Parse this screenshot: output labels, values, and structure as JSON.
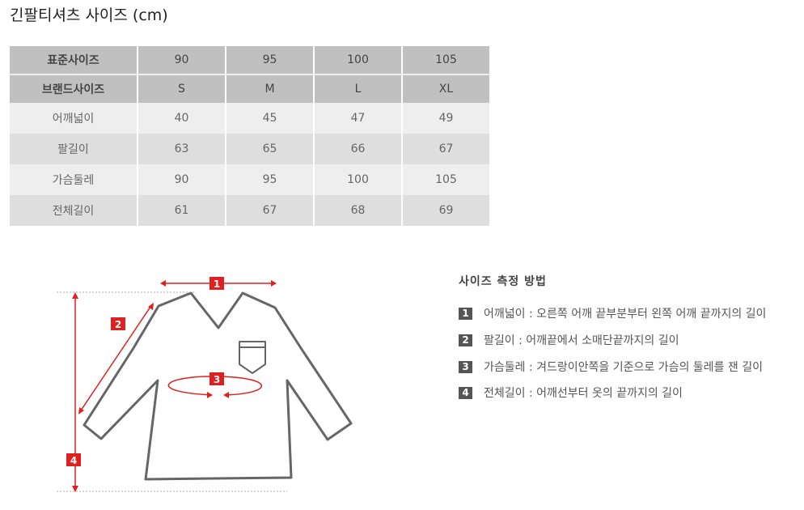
{
  "title": "긴팔티셔츠 사이즈 (cm)",
  "table": {
    "rows": [
      [
        "표준사이즈",
        "90",
        "95",
        "100",
        "105"
      ],
      [
        "브랜드사이즈",
        "S",
        "M",
        "L",
        "XL"
      ],
      [
        "어깨넓이",
        "40",
        "45",
        "47",
        "49"
      ],
      [
        "팔길이",
        "63",
        "65",
        "66",
        "67"
      ],
      [
        "가슴둘레",
        "90",
        "95",
        "100",
        "105"
      ],
      [
        "전체길이",
        "61",
        "67",
        "68",
        "69"
      ]
    ]
  },
  "method": {
    "title": "사이즈 측정 방법",
    "items": [
      {
        "num": "1",
        "text": "어깨넓이 : 오른쪽 어깨 끝부분부터 왼쪽 어깨 끝까지의 길이"
      },
      {
        "num": "2",
        "text": "팔길이 : 어깨끝에서 소매단끝까지의 길이"
      },
      {
        "num": "3",
        "text": "가슴둘레 : 겨드랑이안쪽을 기준으로 가슴의 둘레를 잰 길이"
      },
      {
        "num": "4",
        "text": "전체길이 : 어깨선부터 옷의 끝까지의 길이"
      }
    ]
  },
  "diagram": {
    "markers": [
      "1",
      "2",
      "3",
      "4"
    ],
    "accent": "#e02020"
  }
}
